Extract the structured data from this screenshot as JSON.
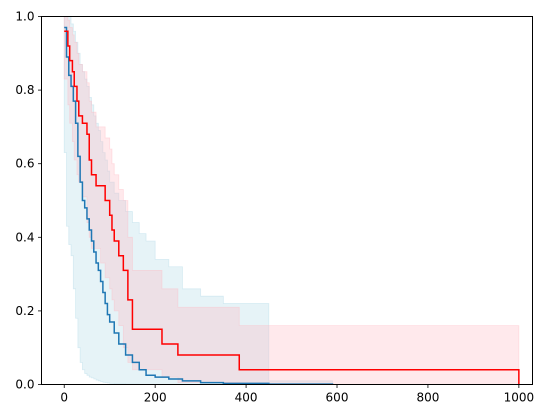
{
  "chart_data": {
    "type": "line",
    "title": "",
    "xlabel": "",
    "ylabel": "",
    "xlim": [
      -50,
      1030
    ],
    "ylim": [
      0,
      1
    ],
    "xticks": [
      0,
      200,
      400,
      600,
      800,
      1000
    ],
    "yticks": [
      0.0,
      0.2,
      0.4,
      0.6,
      0.8,
      1.0
    ],
    "xtick_labels": [
      "0",
      "200",
      "400",
      "600",
      "800",
      "1000"
    ],
    "ytick_labels": [
      "0.0",
      "0.2",
      "0.4",
      "0.6",
      "0.8",
      "1.0"
    ],
    "grid": false,
    "legend": false,
    "series": [
      {
        "color": "#1f77b4",
        "band_color": "#add8e6",
        "x": [
          0,
          5,
          10,
          15,
          20,
          25,
          30,
          35,
          40,
          45,
          50,
          55,
          60,
          65,
          70,
          75,
          80,
          85,
          90,
          95,
          100,
          110,
          120,
          135,
          150,
          165,
          180,
          200,
          230,
          260,
          300,
          350,
          450,
          590
        ],
        "y": [
          0.97,
          0.89,
          0.84,
          0.81,
          0.77,
          0.71,
          0.62,
          0.55,
          0.5,
          0.48,
          0.45,
          0.42,
          0.39,
          0.36,
          0.33,
          0.31,
          0.28,
          0.25,
          0.22,
          0.19,
          0.17,
          0.14,
          0.11,
          0.08,
          0.06,
          0.04,
          0.025,
          0.02,
          0.015,
          0.01,
          0.005,
          0.003,
          0.001,
          0.0
        ],
        "ci_lower": [
          0.94,
          0.63,
          0.43,
          0.38,
          0.35,
          0.26,
          0.18,
          0.1,
          0.06,
          0.04,
          0.03,
          0.025,
          0.02,
          0.018,
          0.015,
          0.012,
          0.01,
          0.008,
          0.006,
          0.005,
          0.004,
          0.003,
          0.002,
          0.002,
          0.001,
          0.001,
          0.0,
          0.0,
          0.0,
          0.0,
          0.0,
          0.0,
          0.0,
          0.0
        ],
        "ci_upper": [
          1.0,
          1.0,
          1.0,
          0.98,
          0.96,
          0.93,
          0.9,
          0.87,
          0.85,
          0.83,
          0.81,
          0.78,
          0.76,
          0.73,
          0.71,
          0.69,
          0.66,
          0.63,
          0.61,
          0.58,
          0.55,
          0.52,
          0.5,
          0.47,
          0.44,
          0.41,
          0.39,
          0.34,
          0.32,
          0.26,
          0.24,
          0.22,
          0.01,
          0.0
        ]
      },
      {
        "color": "#ff0000",
        "band_color": "#ffb6c1",
        "x": [
          0,
          8,
          12,
          18,
          22,
          28,
          32,
          40,
          50,
          55,
          60,
          70,
          80,
          90,
          100,
          105,
          110,
          120,
          130,
          140,
          150,
          215,
          250,
          385,
          1000
        ],
        "y": [
          0.96,
          0.92,
          0.88,
          0.85,
          0.81,
          0.77,
          0.73,
          0.71,
          0.68,
          0.61,
          0.57,
          0.54,
          0.54,
          0.5,
          0.46,
          0.42,
          0.39,
          0.35,
          0.31,
          0.23,
          0.15,
          0.11,
          0.08,
          0.04,
          0.0
        ],
        "ci_lower": [
          0.89,
          0.83,
          0.76,
          0.71,
          0.66,
          0.61,
          0.57,
          0.55,
          0.51,
          0.44,
          0.4,
          0.37,
          0.37,
          0.33,
          0.29,
          0.26,
          0.23,
          0.2,
          0.16,
          0.1,
          0.06,
          0.04,
          0.02,
          0.005,
          0.0
        ],
        "ci_upper": [
          1.0,
          0.99,
          0.97,
          0.95,
          0.93,
          0.9,
          0.87,
          0.85,
          0.82,
          0.77,
          0.74,
          0.7,
          0.7,
          0.67,
          0.64,
          0.6,
          0.57,
          0.53,
          0.5,
          0.4,
          0.31,
          0.26,
          0.21,
          0.16,
          0.0
        ]
      }
    ]
  }
}
